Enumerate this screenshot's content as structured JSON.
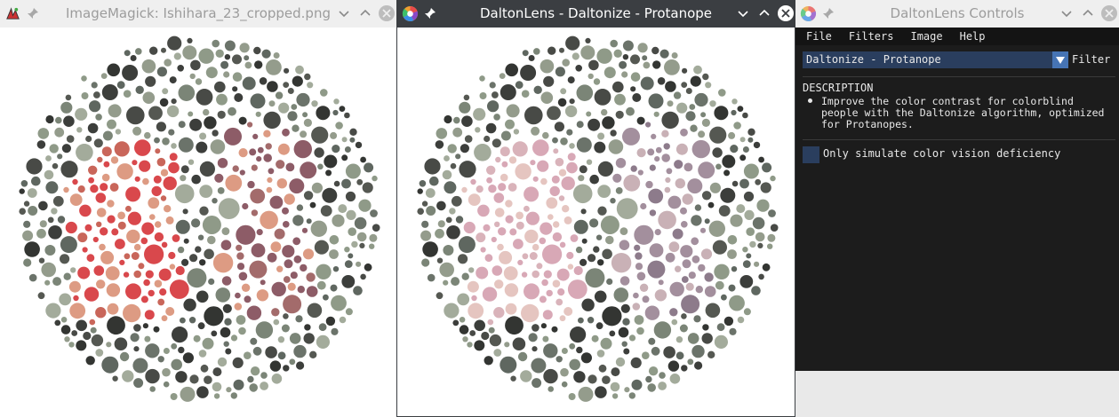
{
  "windows": {
    "imagemagick": {
      "title": "ImageMagick: Ishihara_23_cropped.png",
      "app_icon": "imagemagick-icon",
      "state": "inactive"
    },
    "daltonize": {
      "title": "DaltonLens - Daltonize - Protanope",
      "app_icon": "daltonlens-icon",
      "state": "active"
    },
    "controls": {
      "title": "DaltonLens Controls",
      "app_icon": "daltonlens-icon",
      "state": "inactive",
      "menu": [
        "File",
        "Filters",
        "Image",
        "Help"
      ],
      "filter_combo": {
        "value": "Daltonize - Protanope",
        "label": "Filter"
      },
      "description": {
        "heading": "DESCRIPTION",
        "text": "Improve the color contrast for colorblind people with the Daltonize algorithm, optimized for Protanopes."
      },
      "checkbox": {
        "label": "Only simulate color vision deficiency",
        "checked": false
      }
    }
  },
  "colors": {
    "active_titlebar": "#3b3e42",
    "inactive_titlebar": "#efefef",
    "imgui_widget": "#2a3e5e",
    "imgui_accent": "#4674b4",
    "imgui_bg": "#1c1c1c",
    "plate_gray": "#8f9a88",
    "plate_dark": "#3c3e3b",
    "plate_red": "#d9484c",
    "plate_salmon": "#dd9b83",
    "plate_mauve": "#8d5c67",
    "plate_pink": "#d8a8b6",
    "plate_lavender": "#a38f9d"
  }
}
